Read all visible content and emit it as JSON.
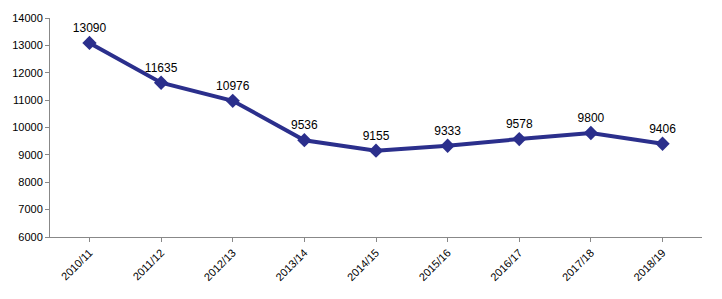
{
  "chart_data": {
    "type": "line",
    "categories": [
      "2010/11",
      "2011/12",
      "2012/13",
      "2013/14",
      "2014/15",
      "2015/16",
      "2016/17",
      "2017/18",
      "2018/19"
    ],
    "values": [
      13090,
      11635,
      10976,
      9536,
      9155,
      9333,
      9578,
      9800,
      9406
    ],
    "color": "#2b2f8c",
    "marker": "diamond",
    "line_style": "solid",
    "data_labels": true,
    "grid": false,
    "ylim": [
      6000,
      14000
    ],
    "yticks": [
      6000,
      7000,
      8000,
      9000,
      10000,
      11000,
      12000,
      13000,
      14000
    ]
  }
}
